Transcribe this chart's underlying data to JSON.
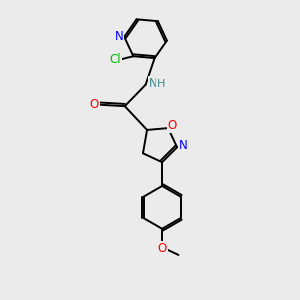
{
  "background_color": "#ebebeb",
  "atom_colors": {
    "C": "#000000",
    "N": "#0000ff",
    "O": "#ff0000",
    "Cl": "#00bb00",
    "H": "#3a8a8a",
    "NH": "#3a8a8a"
  },
  "bond_color": "#000000",
  "bond_width": 1.4,
  "font_size": 8.5
}
